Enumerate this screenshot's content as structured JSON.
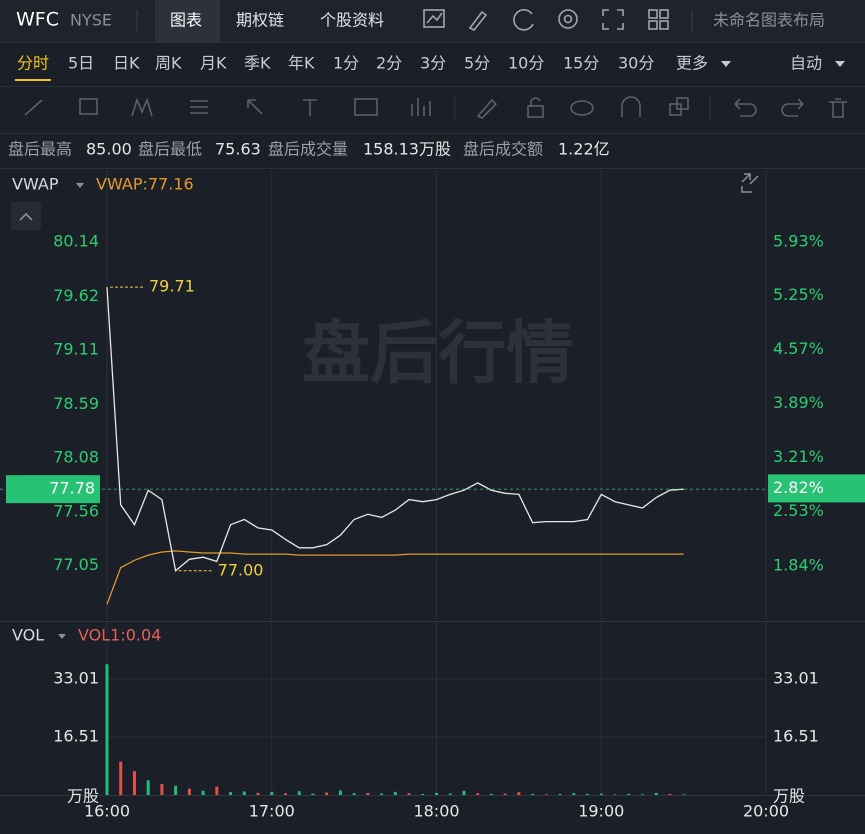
{
  "header": {
    "symbol": "WFC",
    "exchange": "NYSE",
    "tabs": [
      "图表",
      "期权链",
      "个股资料"
    ],
    "layout_name": "未命名图表布局"
  },
  "periods": {
    "items": [
      "分时",
      "5日",
      "日K",
      "周K",
      "月K",
      "季K",
      "年K",
      "1分",
      "2分",
      "3分",
      "5分",
      "10分",
      "15分",
      "30分",
      "更多"
    ],
    "mode": "自动"
  },
  "stats": [
    {
      "label": "盘后最高",
      "value": "85.00"
    },
    {
      "label": "盘后最低",
      "value": "75.63"
    },
    {
      "label": "盘后成交量",
      "value": "158.13万股"
    },
    {
      "label": "盘后成交额",
      "value": "1.22亿"
    }
  ],
  "watermark": "盘后行情",
  "chart_data": [
    {
      "type": "line",
      "legend_value": "VWAP:77.16",
      "x": [
        "16:00",
        "16:05",
        "16:10",
        "16:15",
        "16:20",
        "16:25",
        "16:30",
        "16:35",
        "16:40",
        "16:45",
        "16:50",
        "16:55",
        "17:00",
        "17:05",
        "17:10",
        "17:15",
        "17:20",
        "17:25",
        "17:30",
        "17:35",
        "17:40",
        "17:45",
        "17:50",
        "17:55",
        "18:00",
        "18:05",
        "18:10",
        "18:15",
        "18:20",
        "18:25",
        "18:30",
        "18:35",
        "18:40",
        "18:45",
        "18:50",
        "18:55",
        "19:00",
        "19:05",
        "19:10",
        "19:15",
        "19:20",
        "19:25",
        "19:30"
      ],
      "series": [
        {
          "color": "#e8e8e8",
          "values": [
            79.71,
            77.63,
            77.44,
            77.77,
            77.68,
            77.0,
            77.11,
            77.13,
            77.09,
            77.44,
            77.49,
            77.41,
            77.39,
            77.3,
            77.22,
            77.22,
            77.25,
            77.34,
            77.49,
            77.54,
            77.51,
            77.58,
            77.68,
            77.66,
            77.68,
            77.73,
            77.77,
            77.84,
            77.77,
            77.74,
            77.73,
            77.46,
            77.47,
            77.47,
            77.47,
            77.49,
            77.73,
            77.66,
            77.63,
            77.6,
            77.7,
            77.77,
            77.78
          ]
        },
        {
          "name": "VWAP",
          "color": "#e39a2d",
          "values": [
            76.68,
            77.03,
            77.1,
            77.15,
            77.18,
            77.19,
            77.18,
            77.17,
            77.17,
            77.17,
            77.16,
            77.16,
            77.16,
            77.16,
            77.15,
            77.15,
            77.15,
            77.15,
            77.15,
            77.15,
            77.15,
            77.15,
            77.16,
            77.16,
            77.16,
            77.16,
            77.16,
            77.16,
            77.16,
            77.16,
            77.16,
            77.16,
            77.16,
            77.16,
            77.16,
            77.16,
            77.16,
            77.16,
            77.16,
            77.16,
            77.16,
            77.16,
            77.16
          ]
        }
      ],
      "xlim": [
        "16:00",
        "20:00"
      ],
      "ylim": [
        76.53,
        80.81
      ],
      "yticks": [
        80.14,
        79.62,
        79.11,
        78.59,
        78.08,
        77.56,
        77.05
      ],
      "y2lim": [
        1.16,
        6.81
      ],
      "y2ticks": [
        {
          "value": 5.93,
          "label": "5.93%"
        },
        {
          "value": 5.25,
          "label": "5.25%"
        },
        {
          "value": 4.57,
          "label": "4.57%"
        },
        {
          "value": 3.89,
          "label": "3.89%"
        },
        {
          "value": 3.21,
          "label": "3.21%"
        },
        {
          "value": 2.53,
          "label": "2.53%"
        },
        {
          "value": 1.84,
          "label": "1.84%"
        }
      ],
      "last_price": 77.78,
      "last_change": {
        "value": 2.82,
        "label": "2.82%"
      },
      "annotations": [
        {
          "x": "16:00",
          "value": 79.71
        },
        {
          "x": "16:25",
          "value": 77.0,
          "label": "77.00"
        }
      ]
    },
    {
      "type": "bar",
      "indicator": "VOL",
      "legend_value": "VOL1:0.04",
      "unit": "万股",
      "x": [
        "16:00",
        "16:05",
        "16:10",
        "16:15",
        "16:20",
        "16:25",
        "16:30",
        "16:35",
        "16:40",
        "16:45",
        "16:50",
        "16:55",
        "17:00",
        "17:05",
        "17:10",
        "17:15",
        "17:20",
        "17:25",
        "17:30",
        "17:35",
        "17:40",
        "17:45",
        "17:50",
        "17:55",
        "18:00",
        "18:05",
        "18:10",
        "18:15",
        "18:20",
        "18:25",
        "18:30",
        "18:35",
        "18:40",
        "18:45",
        "18:50",
        "18:55",
        "19:00",
        "19:05",
        "19:10",
        "19:15",
        "19:20",
        "19:25",
        "19:30"
      ],
      "values": [
        37.2,
        9.5,
        6.8,
        4.2,
        3.1,
        2.6,
        1.8,
        1.2,
        2.4,
        0.8,
        1.0,
        0.6,
        0.9,
        0.5,
        1.1,
        0.4,
        0.7,
        1.3,
        0.5,
        0.6,
        0.4,
        0.9,
        0.5,
        0.3,
        0.6,
        0.4,
        1.2,
        0.5,
        0.3,
        0.4,
        0.8,
        0.3,
        0.2,
        0.3,
        0.5,
        0.3,
        0.4,
        0.2,
        0.3,
        0.2,
        0.6,
        0.3,
        0.2
      ],
      "bar_colors": [
        "#1fbf75",
        "#e5504b",
        "#e5504b",
        "#1fbf75",
        "#e5504b",
        "#1fbf75",
        "#e5504b",
        "#1fbf75",
        "#e5504b",
        "#1fbf75",
        "#1fbf75",
        "#e5504b",
        "#1fbf75",
        "#e5504b",
        "#1fbf75",
        "#1fbf75",
        "#e5504b",
        "#1fbf75",
        "#1fbf75",
        "#e5504b",
        "#1fbf75",
        "#1fbf75",
        "#e5504b",
        "#1fbf75",
        "#1fbf75",
        "#1fbf75",
        "#1fbf75",
        "#e5504b",
        "#1fbf75",
        "#e5504b",
        "#e5504b",
        "#1fbf75",
        "#e5504b",
        "#1fbf75",
        "#1fbf75",
        "#1fbf75",
        "#1fbf75",
        "#e5504b",
        "#1fbf75",
        "#1fbf75",
        "#1fbf75",
        "#e5504b",
        "#1fbf75"
      ],
      "xlim": [
        "16:00",
        "20:00"
      ],
      "xticks": [
        "16:00",
        "17:00",
        "18:00",
        "19:00",
        "20:00"
      ],
      "ylim": [
        0,
        49.22
      ],
      "yticks": [
        33.01,
        16.51
      ]
    }
  ]
}
